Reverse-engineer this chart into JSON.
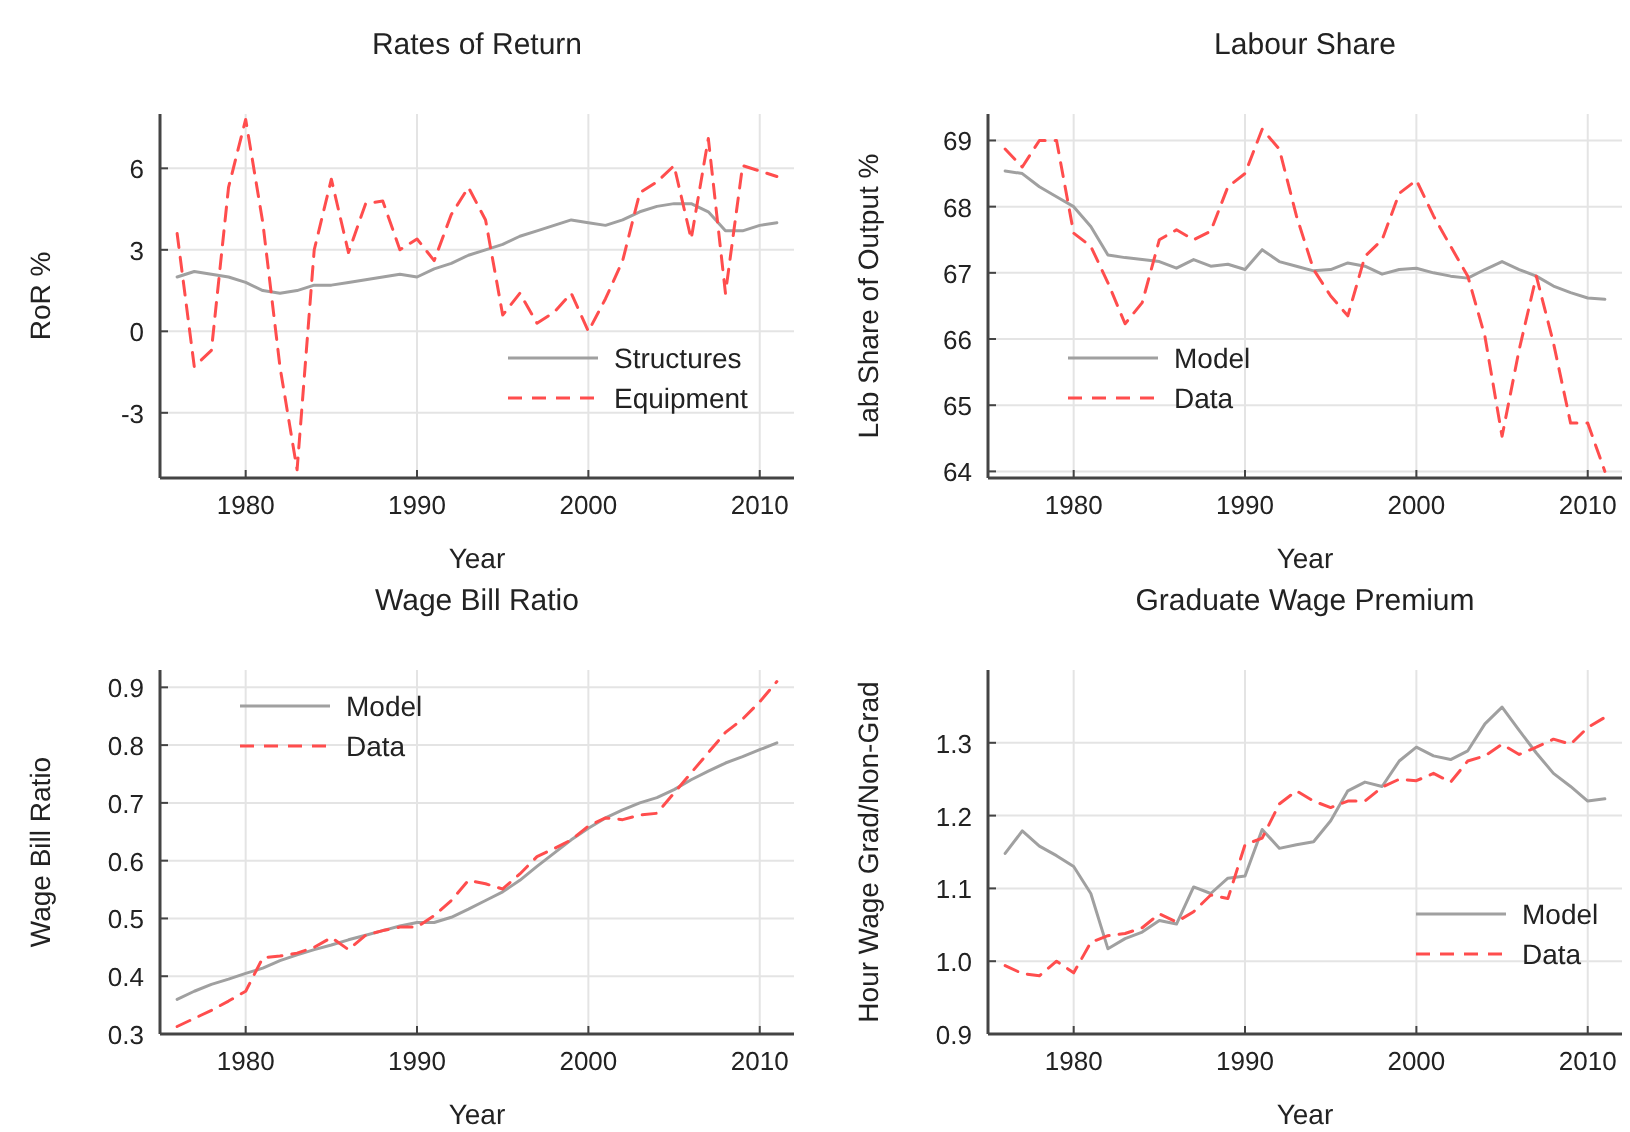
{
  "chart_data": [
    {
      "type": "line",
      "title": "Rates of Return",
      "xlabel": "Year",
      "ylabel": "RoR %",
      "xlim": [
        1975,
        2012
      ],
      "xticks": [
        1980,
        1990,
        2000,
        2010
      ],
      "ylim": [
        -5.4,
        8
      ],
      "yticks": [
        -3,
        0,
        3,
        6
      ],
      "grid": true,
      "legend": "bottom right",
      "x": [
        1976,
        1977,
        1978,
        1979,
        1980,
        1981,
        1982,
        1983,
        1984,
        1985,
        1986,
        1987,
        1988,
        1989,
        1990,
        1991,
        1992,
        1993,
        1994,
        1995,
        1996,
        1997,
        1998,
        1999,
        2000,
        2001,
        2002,
        2003,
        2004,
        2005,
        2006,
        2007,
        2008,
        2009,
        2010,
        2011
      ],
      "series": [
        {
          "name": "Structures",
          "color": "#a0a0a0",
          "line_style": "solid",
          "values": [
            2.0,
            2.2,
            2.1,
            2.0,
            1.8,
            1.5,
            1.4,
            1.5,
            1.7,
            1.7,
            1.8,
            1.9,
            2.0,
            2.1,
            2.0,
            2.3,
            2.5,
            2.8,
            3.0,
            3.2,
            3.5,
            3.7,
            3.9,
            4.1,
            4.0,
            3.9,
            4.1,
            4.4,
            4.6,
            4.7,
            4.7,
            4.4,
            3.7,
            3.7,
            3.9,
            4.0
          ]
        },
        {
          "name": "Equipment",
          "color": "#ff4d4d",
          "line_style": "dashed",
          "values": [
            3.6,
            -1.3,
            -0.7,
            5.3,
            7.8,
            4.0,
            -1.3,
            -5.1,
            3.0,
            5.6,
            2.9,
            4.7,
            4.8,
            3.0,
            3.4,
            2.6,
            4.3,
            5.3,
            4.1,
            0.6,
            1.4,
            0.3,
            0.7,
            1.4,
            0.0,
            1.2,
            2.6,
            5.1,
            5.5,
            6.1,
            3.4,
            7.1,
            1.4,
            6.1,
            5.9,
            5.7
          ]
        }
      ]
    },
    {
      "type": "line",
      "title": "Labour Share",
      "xlabel": "Year",
      "ylabel": "Lab Share of Output %",
      "xlim": [
        1975,
        2012
      ],
      "xticks": [
        1980,
        1990,
        2000,
        2010
      ],
      "ylim": [
        63.9,
        69.4
      ],
      "yticks": [
        64,
        65,
        66,
        67,
        68,
        69
      ],
      "grid": true,
      "legend": "bottom left",
      "x": [
        1976,
        1977,
        1978,
        1979,
        1980,
        1981,
        1982,
        1983,
        1984,
        1985,
        1986,
        1987,
        1988,
        1989,
        1990,
        1991,
        1992,
        1993,
        1994,
        1995,
        1996,
        1997,
        1998,
        1999,
        2000,
        2001,
        2002,
        2003,
        2004,
        2005,
        2006,
        2007,
        2008,
        2009,
        2010,
        2011
      ],
      "series": [
        {
          "name": "Model",
          "color": "#a0a0a0",
          "line_style": "solid",
          "values": [
            68.54,
            68.5,
            68.3,
            68.15,
            68.0,
            67.7,
            67.27,
            67.23,
            67.2,
            67.17,
            67.07,
            67.2,
            67.1,
            67.13,
            67.05,
            67.35,
            67.17,
            67.1,
            67.03,
            67.05,
            67.15,
            67.1,
            66.98,
            67.05,
            67.07,
            67.0,
            66.95,
            66.92,
            67.05,
            67.17,
            67.05,
            66.95,
            66.8,
            66.7,
            66.62,
            66.6
          ]
        },
        {
          "name": "Data",
          "color": "#ff4d4d",
          "line_style": "dashed",
          "values": [
            68.87,
            68.6,
            69.0,
            69.0,
            67.6,
            67.4,
            66.85,
            66.23,
            66.55,
            67.5,
            67.65,
            67.5,
            67.63,
            68.3,
            68.5,
            69.17,
            68.87,
            67.86,
            67.05,
            66.65,
            66.35,
            67.25,
            67.5,
            68.2,
            68.4,
            67.86,
            67.4,
            66.95,
            66.04,
            64.53,
            65.84,
            66.95,
            65.94,
            64.73,
            64.73,
            64.0
          ]
        }
      ]
    },
    {
      "type": "line",
      "title": "Wage Bill Ratio",
      "xlabel": "Year",
      "ylabel": "Wage Bill Ratio",
      "xlim": [
        1975,
        2012
      ],
      "xticks": [
        1980,
        1990,
        2000,
        2010
      ],
      "ylim": [
        0.3,
        0.93
      ],
      "yticks": [
        {
          "value": 0.3,
          "label": "0.3"
        },
        {
          "value": 0.4,
          "label": "0.4"
        },
        {
          "value": 0.5,
          "label": "0.5"
        },
        {
          "value": 0.6,
          "label": "0.6"
        },
        {
          "value": 0.7,
          "label": "0.7"
        },
        {
          "value": 0.8,
          "label": "0.8"
        },
        {
          "value": 0.9,
          "label": "0.9"
        }
      ],
      "grid": true,
      "legend": "top left",
      "x": [
        1976,
        1977,
        1978,
        1979,
        1980,
        1981,
        1982,
        1983,
        1984,
        1985,
        1986,
        1987,
        1988,
        1989,
        1990,
        1991,
        1992,
        1993,
        1994,
        1995,
        1996,
        1997,
        1998,
        1999,
        2000,
        2001,
        2002,
        2003,
        2004,
        2005,
        2006,
        2007,
        2008,
        2009,
        2010,
        2011
      ],
      "series": [
        {
          "name": "Model",
          "color": "#a0a0a0",
          "line_style": "solid",
          "values": [
            0.36,
            0.374,
            0.386,
            0.395,
            0.405,
            0.414,
            0.427,
            0.437,
            0.446,
            0.454,
            0.463,
            0.471,
            0.479,
            0.487,
            0.493,
            0.493,
            0.502,
            0.516,
            0.531,
            0.546,
            0.566,
            0.59,
            0.613,
            0.636,
            0.656,
            0.674,
            0.688,
            0.7,
            0.709,
            0.723,
            0.74,
            0.755,
            0.769,
            0.78,
            0.792,
            0.804
          ]
        },
        {
          "name": "Data",
          "color": "#ff4d4d",
          "line_style": "dashed",
          "values": [
            0.313,
            0.327,
            0.341,
            0.357,
            0.374,
            0.432,
            0.435,
            0.44,
            0.45,
            0.467,
            0.446,
            0.471,
            0.479,
            0.485,
            0.485,
            0.505,
            0.531,
            0.566,
            0.56,
            0.551,
            0.577,
            0.607,
            0.621,
            0.636,
            0.66,
            0.674,
            0.671,
            0.679,
            0.682,
            0.717,
            0.752,
            0.787,
            0.822,
            0.845,
            0.875,
            0.91
          ]
        }
      ]
    },
    {
      "type": "line",
      "title": "Graduate Wage Premium",
      "xlabel": "Year",
      "ylabel": "Hour Wage Grad/Non-Grad",
      "xlim": [
        1975,
        2012
      ],
      "xticks": [
        1980,
        1990,
        2000,
        2010
      ],
      "ylim": [
        0.9,
        1.4
      ],
      "yticks": [
        {
          "value": 0.9,
          "label": "0.9"
        },
        {
          "value": 1.0,
          "label": "1.0"
        },
        {
          "value": 1.1,
          "label": "1.1"
        },
        {
          "value": 1.2,
          "label": "1.2"
        },
        {
          "value": 1.3,
          "label": "1.3"
        }
      ],
      "grid": true,
      "legend": "bottom right",
      "x": [
        1976,
        1977,
        1978,
        1979,
        1980,
        1981,
        1982,
        1983,
        1984,
        1985,
        1986,
        1987,
        1988,
        1989,
        1990,
        1991,
        1992,
        1993,
        1994,
        1995,
        1996,
        1997,
        1998,
        1999,
        2000,
        2001,
        2002,
        2003,
        2004,
        2005,
        2006,
        2007,
        2008,
        2009,
        2010,
        2011
      ],
      "series": [
        {
          "name": "Model",
          "color": "#a0a0a0",
          "line_style": "solid",
          "values": [
            1.148,
            1.179,
            1.158,
            1.145,
            1.13,
            1.093,
            1.017,
            1.031,
            1.04,
            1.056,
            1.051,
            1.102,
            1.093,
            1.114,
            1.117,
            1.181,
            1.155,
            1.16,
            1.164,
            1.193,
            1.234,
            1.246,
            1.24,
            1.275,
            1.294,
            1.282,
            1.277,
            1.289,
            1.326,
            1.349,
            1.317,
            1.286,
            1.258,
            1.24,
            1.22,
            1.223
          ]
        },
        {
          "name": "Data",
          "color": "#ff4d4d",
          "line_style": "dashed",
          "values": [
            0.994,
            0.983,
            0.98,
            1.0,
            0.984,
            1.026,
            1.035,
            1.038,
            1.046,
            1.065,
            1.054,
            1.068,
            1.091,
            1.086,
            1.16,
            1.169,
            1.216,
            1.234,
            1.22,
            1.211,
            1.22,
            1.22,
            1.239,
            1.25,
            1.248,
            1.258,
            1.246,
            1.275,
            1.282,
            1.298,
            1.284,
            1.294,
            1.305,
            1.298,
            1.321,
            1.335
          ]
        }
      ]
    }
  ]
}
